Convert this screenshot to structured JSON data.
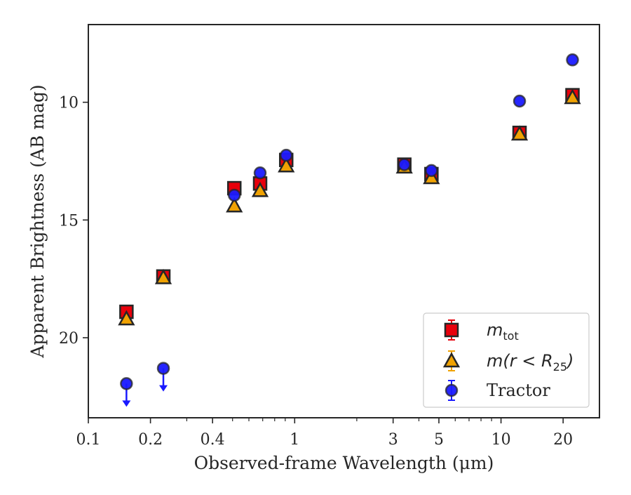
{
  "chart_data": {
    "type": "scatter",
    "title": "",
    "xlabel": "Observed-frame Wavelength (μm)",
    "ylabel": "Apparent Brightness (AB mag)",
    "xscale": "log",
    "xlim": [
      0.1,
      30
    ],
    "ylim": [
      23.4,
      6.7
    ],
    "y_inverted": true,
    "x_ticks": [
      0.1,
      0.2,
      0.4,
      1,
      3,
      5,
      10,
      20
    ],
    "x_tick_labels": [
      "0.1",
      "0.2",
      "0.4",
      "1",
      "3",
      "5",
      "10",
      "20"
    ],
    "y_ticks": [
      10,
      15,
      20
    ],
    "y_tick_labels": [
      "10",
      "15",
      "20"
    ],
    "grid": false,
    "legend_position": "lower-right",
    "series": [
      {
        "name_main": "m",
        "name_sub": "tot",
        "marker": "square",
        "color": "#e8000b",
        "points": [
          {
            "x": 0.153,
            "y": 18.9
          },
          {
            "x": 0.231,
            "y": 17.4
          },
          {
            "x": 0.51,
            "y": 13.65
          },
          {
            "x": 0.68,
            "y": 13.45
          },
          {
            "x": 0.91,
            "y": 12.45
          },
          {
            "x": 3.4,
            "y": 12.65
          },
          {
            "x": 4.6,
            "y": 13.05
          },
          {
            "x": 12.3,
            "y": 11.3
          },
          {
            "x": 22.2,
            "y": 9.7
          }
        ]
      },
      {
        "name_main": "m(r < R",
        "name_sub": "25",
        "name_suffix": ")",
        "marker": "triangle",
        "color": "#f0a202",
        "points": [
          {
            "x": 0.153,
            "y": 19.2
          },
          {
            "x": 0.231,
            "y": 17.45
          },
          {
            "x": 0.51,
            "y": 14.4
          },
          {
            "x": 0.68,
            "y": 13.75
          },
          {
            "x": 0.91,
            "y": 12.7
          },
          {
            "x": 3.4,
            "y": 12.75
          },
          {
            "x": 4.6,
            "y": 13.2
          },
          {
            "x": 12.3,
            "y": 11.35
          },
          {
            "x": 22.2,
            "y": 9.8
          }
        ]
      },
      {
        "name": "Tractor",
        "marker": "circle",
        "color": "#1a1aff",
        "points": [
          {
            "x": 0.153,
            "y": 21.95,
            "upper_limit": true
          },
          {
            "x": 0.231,
            "y": 21.3,
            "upper_limit": true
          },
          {
            "x": 0.51,
            "y": 13.95
          },
          {
            "x": 0.68,
            "y": 13.0
          },
          {
            "x": 0.91,
            "y": 12.25
          },
          {
            "x": 3.4,
            "y": 12.65
          },
          {
            "x": 4.6,
            "y": 12.9
          },
          {
            "x": 12.3,
            "y": 9.95
          },
          {
            "x": 22.2,
            "y": 8.2
          }
        ]
      }
    ]
  }
}
